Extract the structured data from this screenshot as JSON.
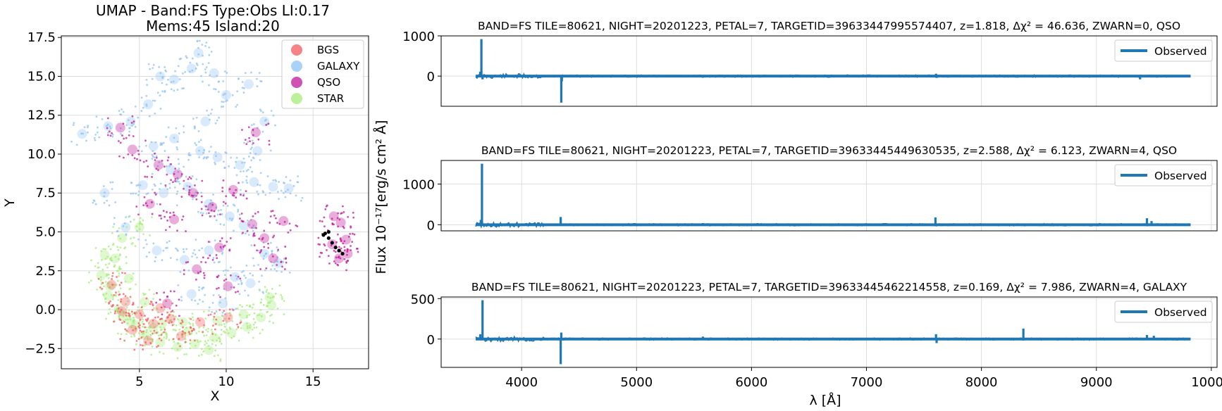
{
  "chart_data": [
    {
      "type": "scatter",
      "title_line1": "UMAP  -  Band:FS Type:Obs LI:0.17",
      "title_line2": "Mems:45 Island:20",
      "xlabel": "X",
      "ylabel": "Y",
      "xlim": [
        0.5,
        18.2
      ],
      "ylim": [
        -3.8,
        17.6
      ],
      "xticks": [
        5,
        10,
        15
      ],
      "yticks": [
        -2.5,
        0.0,
        2.5,
        5.0,
        7.5,
        10.0,
        12.5,
        15.0,
        17.5
      ],
      "grid": true,
      "legend_position": "top-right",
      "legend": [
        {
          "name": "BGS",
          "color": "#f45b5b"
        },
        {
          "name": "GALAXY",
          "color": "#8ec2f6"
        },
        {
          "name": "QSO",
          "color": "#c1159a"
        },
        {
          "name": "STAR",
          "color": "#a5ec79"
        }
      ],
      "series": [
        {
          "name": "GALAXY",
          "color": "#8ec2f6",
          "points": [
            [
              3.2,
              11.8
            ],
            [
              4.5,
              12.1
            ],
            [
              5.5,
              13.2
            ],
            [
              6.2,
              15.0
            ],
            [
              7.0,
              14.8
            ],
            [
              8.0,
              15.5
            ],
            [
              8.4,
              16.5
            ],
            [
              9.3,
              15.2
            ],
            [
              10.0,
              13.8
            ],
            [
              11.3,
              14.5
            ],
            [
              12.2,
              12.1
            ],
            [
              5.8,
              10.5
            ],
            [
              7.0,
              11.0
            ],
            [
              8.5,
              10.2
            ],
            [
              9.5,
              9.8
            ],
            [
              10.8,
              9.3
            ],
            [
              11.6,
              8.2
            ],
            [
              12.7,
              7.9
            ],
            [
              13.6,
              7.8
            ],
            [
              5.2,
              8.0
            ],
            [
              6.4,
              7.5
            ],
            [
              7.8,
              7.9
            ],
            [
              9.0,
              6.8
            ],
            [
              10.2,
              6.0
            ],
            [
              11.0,
              5.4
            ],
            [
              12.2,
              3.6
            ],
            [
              13.0,
              3.0
            ],
            [
              4.2,
              5.3
            ],
            [
              6.0,
              3.8
            ],
            [
              7.6,
              3.2
            ],
            [
              9.0,
              3.8
            ],
            [
              10.5,
              2.1
            ],
            [
              11.4,
              1.7
            ],
            [
              8.0,
              1.0
            ],
            [
              9.8,
              0.4
            ],
            [
              1.7,
              11.3
            ],
            [
              3.0,
              7.5
            ],
            [
              6.8,
              9.0
            ],
            [
              8.8,
              12.1
            ],
            [
              11.8,
              10.2
            ]
          ]
        },
        {
          "name": "QSO",
          "color": "#c1159a",
          "points": [
            [
              3.9,
              11.7
            ],
            [
              4.6,
              10.3
            ],
            [
              6.1,
              9.3
            ],
            [
              7.2,
              8.7
            ],
            [
              8.1,
              7.5
            ],
            [
              9.2,
              6.6
            ],
            [
              10.4,
              7.7
            ],
            [
              11.5,
              5.5
            ],
            [
              12.2,
              4.6
            ],
            [
              12.7,
              3.3
            ],
            [
              9.6,
              4.0
            ],
            [
              8.3,
              2.6
            ],
            [
              7.0,
              5.8
            ],
            [
              5.6,
              6.8
            ],
            [
              10.1,
              1.5
            ],
            [
              6.6,
              0.4
            ],
            [
              16.2,
              6.0
            ],
            [
              16.6,
              5.6
            ],
            [
              16.9,
              4.5
            ],
            [
              17.0,
              3.6
            ],
            [
              16.5,
              3.3
            ],
            [
              16.1,
              4.2
            ],
            [
              13.3,
              5.7
            ],
            [
              11.7,
              11.4
            ]
          ]
        },
        {
          "name": "STAR",
          "color": "#a5ec79",
          "points": [
            [
              3.0,
              3.5
            ],
            [
              2.8,
              2.2
            ],
            [
              3.2,
              0.9
            ],
            [
              3.8,
              0.0
            ],
            [
              4.5,
              -0.8
            ],
            [
              5.3,
              -1.6
            ],
            [
              6.2,
              -2.1
            ],
            [
              7.2,
              -2.4
            ],
            [
              8.2,
              -2.2
            ],
            [
              9.3,
              -1.8
            ],
            [
              10.3,
              -1.5
            ],
            [
              11.2,
              -1.1
            ],
            [
              12.0,
              -0.5
            ],
            [
              12.6,
              0.3
            ],
            [
              12.5,
              0.8
            ],
            [
              4.0,
              4.6
            ],
            [
              5.0,
              5.3
            ],
            [
              3.6,
              3.3
            ],
            [
              4.4,
              2.0
            ],
            [
              5.3,
              0.5
            ],
            [
              6.3,
              -0.9
            ],
            [
              7.8,
              -1.4
            ],
            [
              9.5,
              -0.7
            ],
            [
              11.0,
              -0.3
            ],
            [
              4.8,
              -1.0
            ],
            [
              5.8,
              -1.2
            ],
            [
              7.5,
              -0.8
            ],
            [
              3.3,
              1.5
            ],
            [
              4.1,
              -0.4
            ],
            [
              9.0,
              -2.6
            ]
          ]
        },
        {
          "name": "BGS",
          "color": "#f45b5b",
          "points": [
            [
              3.4,
              1.6
            ],
            [
              4.2,
              0.5
            ],
            [
              5.0,
              -0.3
            ],
            [
              5.8,
              -0.9
            ],
            [
              6.8,
              -0.6
            ],
            [
              4.6,
              -1.3
            ],
            [
              5.5,
              -2.0
            ],
            [
              8.5,
              -0.8
            ],
            [
              10.1,
              -0.5
            ],
            [
              7.4,
              -1.7
            ],
            [
              4.0,
              -0.1
            ],
            [
              6.2,
              0.1
            ]
          ]
        }
      ],
      "black_track": [
        [
          15.6,
          4.8
        ],
        [
          15.9,
          4.6
        ],
        [
          16.1,
          4.3
        ],
        [
          16.3,
          4.0
        ],
        [
          16.5,
          3.8
        ],
        [
          16.7,
          3.6
        ],
        [
          15.7,
          4.9
        ],
        [
          15.9,
          5.0
        ]
      ]
    },
    {
      "type": "line",
      "title": "BAND=FS TILE=80621, NIGHT=20201223, PETAL=7, TARGETID=39633447995574407, z=1.818, Δχ² = 46.636, ZWARN=0, QSO",
      "legend": [
        "Observed"
      ],
      "xlim": [
        3300,
        10050
      ],
      "ylim": [
        -750,
        1000
      ],
      "yticks": [
        0,
        1000
      ],
      "spikes": [
        [
          3650,
          920
        ],
        [
          3640,
          110
        ],
        [
          3660,
          -80
        ],
        [
          4345,
          -660
        ],
        [
          4350,
          -130
        ],
        [
          5577,
          -40
        ],
        [
          7605,
          60
        ],
        [
          7610,
          -45
        ],
        [
          9380,
          -80
        ]
      ]
    },
    {
      "type": "line",
      "title": "BAND=FS TILE=80621, NIGHT=20201223, PETAL=7, TARGETID=39633445449630535, z=2.588, Δχ² = 6.123, ZWARN=4, QSO",
      "legend": [
        "Observed"
      ],
      "xlim": [
        3300,
        10050
      ],
      "ylim": [
        -150,
        1580
      ],
      "yticks": [
        0,
        1000
      ],
      "spikes": [
        [
          3655,
          1500
        ],
        [
          3645,
          120
        ],
        [
          4340,
          190
        ],
        [
          5577,
          40
        ],
        [
          7600,
          180
        ],
        [
          7605,
          -40
        ],
        [
          9440,
          160
        ],
        [
          9480,
          90
        ]
      ]
    },
    {
      "type": "line",
      "title": "BAND=FS TILE=80621, NIGHT=20201223, PETAL=7, TARGETID=39633445462214558, z=0.169, Δχ² = 7.986, ZWARN=4, GALAXY",
      "legend": [
        "Observed"
      ],
      "xlim": [
        3300,
        10050
      ],
      "ylim": [
        -350,
        520
      ],
      "yticks": [
        0,
        500
      ],
      "xticks": [
        4000,
        5000,
        6000,
        7000,
        8000,
        9000,
        10000
      ],
      "xlabel": "λ [Å]",
      "spikes": [
        [
          3660,
          480
        ],
        [
          3640,
          60
        ],
        [
          4340,
          -310
        ],
        [
          4345,
          80
        ],
        [
          5577,
          30
        ],
        [
          7605,
          60
        ],
        [
          7610,
          -50
        ],
        [
          8365,
          130
        ],
        [
          9440,
          50
        ],
        [
          9500,
          40
        ]
      ]
    }
  ],
  "shared_ylabel": "Flux 10⁻¹⁷[erg/s cm² Å]",
  "spectrum_color": "#1f77b4",
  "spectrum_range": [
    3600,
    9820
  ]
}
